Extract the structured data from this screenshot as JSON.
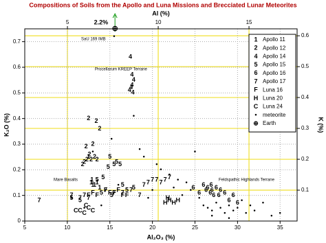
{
  "chart_data": {
    "type": "scatter",
    "title": "Compositions of Soils from the Apollo and Luna Missions and Brecciated Lunar Meteorites",
    "x_label": "Al₂O₃ (%)",
    "y_label": "K₂O (%)",
    "x2_label": "Al (%)",
    "y2_label": "K (%)",
    "xlim": [
      5,
      37
    ],
    "ylim": [
      0,
      0.75
    ],
    "xticks": [
      5,
      10,
      15,
      20,
      25,
      30,
      35
    ],
    "yticks": [
      0,
      0.1,
      0.2,
      0.3,
      0.4,
      0.5,
      0.6,
      0.7
    ],
    "x2lim": [
      2.65,
      17.65
    ],
    "x2ticks": [
      5,
      10,
      15
    ],
    "y2lim": [
      0,
      0.6225
    ],
    "y2ticks": [
      0.1,
      0.2,
      0.3,
      0.4,
      0.5,
      0.6
    ],
    "grid": true,
    "legend": "upper right",
    "annotations": [
      "SaU 169 IMB",
      "Procellarum KREEP Terrane",
      "Mare Basalts",
      "Feldspathic Highlands Terrane"
    ],
    "series": [
      {
        "name": "Apollo 11",
        "color": "#000000",
        "marker": "1",
        "x": [
          12.8,
          13.2,
          13.5,
          12.5,
          13.0,
          13.8,
          12.9
        ],
        "y": [
          0.15,
          0.14,
          0.15,
          0.25,
          0.14,
          0.13,
          0.16
        ]
      },
      {
        "name": "Apollo 12",
        "color": "#e00000",
        "marker": "2",
        "x": [
          12.5,
          13.8,
          13.0,
          11.8,
          12.3,
          12.8,
          13.2,
          12.0,
          13.5,
          12.6,
          12.2,
          13.4
        ],
        "y": [
          0.4,
          0.36,
          0.3,
          0.22,
          0.24,
          0.24,
          0.25,
          0.23,
          0.24,
          0.26,
          0.29,
          0.39
        ]
      },
      {
        "name": "Apollo 14",
        "color": "#22cc22",
        "marker": "4",
        "x": [
          17.4,
          17.6,
          17.8,
          17.5,
          17.7,
          17.3,
          17.6
        ],
        "y": [
          0.64,
          0.57,
          0.55,
          0.52,
          0.5,
          0.51,
          0.53
        ]
      },
      {
        "name": "Apollo 15",
        "color": "#e000e0",
        "marker": "5",
        "x": [
          15.0,
          15.8,
          15.5,
          16.2,
          14.8,
          13.5,
          14.2,
          16.5,
          17.8,
          10.5,
          11.5,
          14.0,
          15.2,
          17.0
        ],
        "y": [
          0.25,
          0.23,
          0.22,
          0.22,
          0.21,
          0.16,
          0.17,
          0.14,
          0.13,
          0.09,
          0.08,
          0.11,
          0.1,
          0.12
        ]
      },
      {
        "name": "Apollo 16",
        "color": "#0000e0",
        "marker": "6",
        "x": [
          26,
          26.5,
          27,
          27.5,
          26.8,
          26.3,
          28,
          28.5,
          29,
          27.2,
          25.5,
          26.9,
          27.8,
          24.8,
          29.5,
          30
        ],
        "y": [
          0.14,
          0.13,
          0.12,
          0.13,
          0.11,
          0.12,
          0.12,
          0.11,
          0.08,
          0.1,
          0.11,
          0.14,
          0.1,
          0.13,
          0.1,
          0.07
        ]
      },
      {
        "name": "Apollo 17",
        "color": "#00bbbb",
        "marker": "7",
        "x": [
          6.7,
          10.5,
          11.5,
          12,
          14.5,
          15.5,
          16.5,
          17.5,
          19,
          19.5,
          20,
          20.5,
          21,
          22,
          21.5,
          18.5,
          12.5
        ],
        "y": [
          0.08,
          0.1,
          0.09,
          0.1,
          0.12,
          0.11,
          0.11,
          0.12,
          0.14,
          0.15,
          0.16,
          0.16,
          0.15,
          0.17,
          0.16,
          0.1,
          0.09
        ]
      },
      {
        "name": "Luna 16",
        "color": "#888888",
        "marker": "F",
        "x": [
          12.5,
          13,
          14.5,
          15.5,
          16,
          16.5,
          17,
          13.5,
          15
        ],
        "y": [
          0.1,
          0.11,
          0.12,
          0.11,
          0.12,
          0.1,
          0.1,
          0.1,
          0.11
        ]
      },
      {
        "name": "Luna 20",
        "color": "#888888",
        "marker": "H",
        "x": [
          21.5,
          22,
          22.5,
          23,
          21.8
        ],
        "y": [
          0.07,
          0.08,
          0.07,
          0.08,
          0.09
        ]
      },
      {
        "name": "Luna 24",
        "color": "#888888",
        "marker": "C",
        "x": [
          11.5,
          12.0,
          12.5,
          13,
          11,
          12.2
        ],
        "y": [
          0.04,
          0.03,
          0.05,
          0.04,
          0.04,
          0.06
        ]
      },
      {
        "name": "meteorite",
        "color": "#999999",
        "marker": "•",
        "x": [
          15.5,
          15.2,
          17.8,
          18.5,
          19,
          20.5,
          21,
          22,
          23,
          24,
          25,
          25.5,
          26,
          26.5,
          27,
          27.5,
          28,
          28.5,
          29,
          29.5,
          30,
          30.5,
          31,
          31.5,
          32,
          33,
          34,
          35,
          24.5,
          23.5,
          22.5,
          20,
          19.5,
          16,
          14,
          12,
          10.5,
          13,
          27,
          29
        ],
        "y": [
          0.72,
          0.32,
          0.41,
          0.28,
          0.25,
          0.22,
          0.2,
          0.18,
          0.16,
          0.15,
          0.27,
          0.09,
          0.06,
          0.05,
          0.04,
          0.07,
          0.05,
          0.03,
          0.06,
          0.04,
          0.05,
          0.08,
          0.03,
          0.06,
          0.04,
          0.07,
          0.02,
          0.03,
          0.12,
          0.1,
          0.13,
          0.12,
          0.09,
          0.14,
          0.06,
          0.05,
          0.09,
          0.27,
          0.02,
          0.01
        ]
      },
      {
        "name": "Earth",
        "color": "#119911",
        "marker": "⊕",
        "x": [
          15.6
        ],
        "y": [
          2.2
        ],
        "value_labels": [
          "2.2%"
        ]
      }
    ]
  }
}
